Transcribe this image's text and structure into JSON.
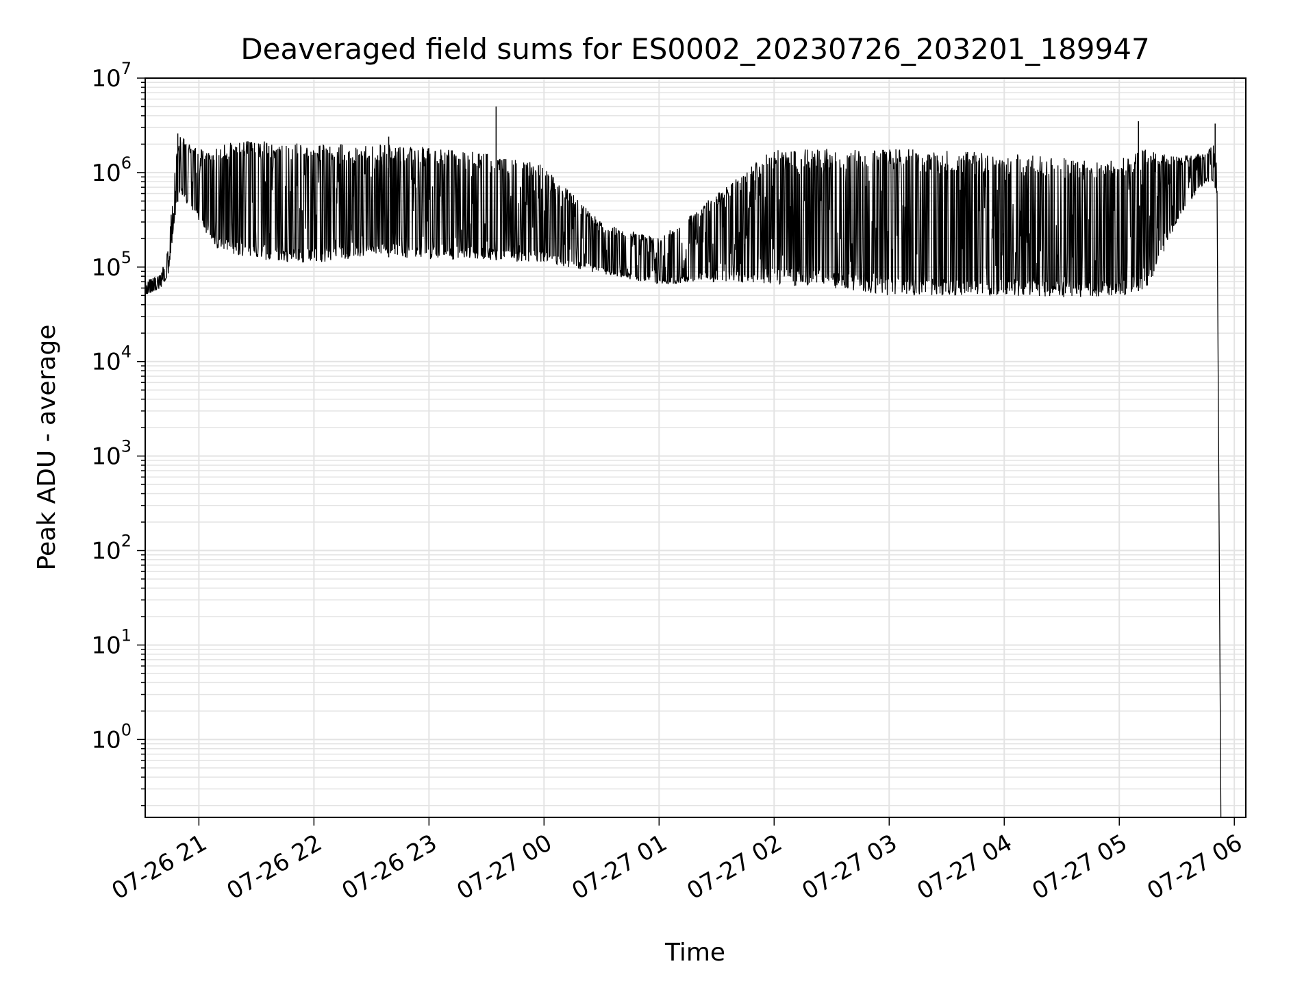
{
  "chart_data": {
    "type": "line",
    "title": "Deaveraged field sums for ES0002_20230726_203201_189947",
    "xlabel": "Time",
    "ylabel": "Peak ADU - average",
    "yscale": "log",
    "ylim": [
      0.15,
      10000000
    ],
    "xlim": [
      "2023-07-26 20:32",
      "2023-07-27 06:06"
    ],
    "grid": true,
    "colors": {
      "line": "#000000",
      "grid": "#e3e3e3",
      "axes": "#000000"
    },
    "x_ticks": [
      {
        "t": "2023-07-26 21:00",
        "label": "07-26 21"
      },
      {
        "t": "2023-07-26 22:00",
        "label": "07-26 22"
      },
      {
        "t": "2023-07-26 23:00",
        "label": "07-26 23"
      },
      {
        "t": "2023-07-27 00:00",
        "label": "07-27 00"
      },
      {
        "t": "2023-07-27 01:00",
        "label": "07-27 01"
      },
      {
        "t": "2023-07-27 02:00",
        "label": "07-27 02"
      },
      {
        "t": "2023-07-27 03:00",
        "label": "07-27 03"
      },
      {
        "t": "2023-07-27 04:00",
        "label": "07-27 04"
      },
      {
        "t": "2023-07-27 05:00",
        "label": "07-27 05"
      },
      {
        "t": "2023-07-27 06:00",
        "label": "07-27 06"
      }
    ],
    "y_ticks": [
      {
        "value": 1,
        "base": "10",
        "exp": "0"
      },
      {
        "value": 10,
        "base": "10",
        "exp": "1"
      },
      {
        "value": 100,
        "base": "10",
        "exp": "2"
      },
      {
        "value": 1000,
        "base": "10",
        "exp": "3"
      },
      {
        "value": 10000,
        "base": "10",
        "exp": "4"
      },
      {
        "value": 100000,
        "base": "10",
        "exp": "5"
      },
      {
        "value": 1000000,
        "base": "10",
        "exp": "6"
      },
      {
        "value": 10000000,
        "base": "10",
        "exp": "7"
      }
    ],
    "series": [
      {
        "envelope": [
          {
            "t": "2023-07-26 20:32",
            "low": 50000,
            "high": 70000
          },
          {
            "t": "2023-07-26 20:40",
            "low": 60000,
            "high": 85000
          },
          {
            "t": "2023-07-26 20:44",
            "low": 80000,
            "high": 150000
          },
          {
            "t": "2023-07-26 20:48",
            "low": 400000,
            "high": 1500000
          },
          {
            "t": "2023-07-26 20:50",
            "low": 600000,
            "high": 2500000
          },
          {
            "t": "2023-07-26 21:00",
            "low": 300000,
            "high": 1800000
          },
          {
            "t": "2023-07-26 21:10",
            "low": 150000,
            "high": 2000000
          },
          {
            "t": "2023-07-26 21:30",
            "low": 120000,
            "high": 2200000
          },
          {
            "t": "2023-07-26 22:00",
            "low": 110000,
            "high": 2000000
          },
          {
            "t": "2023-07-26 22:30",
            "low": 130000,
            "high": 2000000
          },
          {
            "t": "2023-07-26 23:00",
            "low": 120000,
            "high": 1900000
          },
          {
            "t": "2023-07-26 23:30",
            "low": 120000,
            "high": 1600000
          },
          {
            "t": "2023-07-27 00:00",
            "low": 110000,
            "high": 1200000
          },
          {
            "t": "2023-07-27 00:30",
            "low": 85000,
            "high": 300000
          },
          {
            "t": "2023-07-27 01:00",
            "low": 65000,
            "high": 200000
          },
          {
            "t": "2023-07-27 01:30",
            "low": 70000,
            "high": 600000
          },
          {
            "t": "2023-07-27 02:00",
            "low": 65000,
            "high": 1800000
          },
          {
            "t": "2023-07-27 02:30",
            "low": 60000,
            "high": 1800000
          },
          {
            "t": "2023-07-27 03:00",
            "low": 50000,
            "high": 1800000
          },
          {
            "t": "2023-07-27 03:30",
            "low": 50000,
            "high": 1700000
          },
          {
            "t": "2023-07-27 04:00",
            "low": 50000,
            "high": 1600000
          },
          {
            "t": "2023-07-27 04:30",
            "low": 48000,
            "high": 1500000
          },
          {
            "t": "2023-07-27 05:00",
            "low": 48000,
            "high": 1400000
          },
          {
            "t": "2023-07-27 05:15",
            "low": 60000,
            "high": 1800000
          },
          {
            "t": "2023-07-27 05:30",
            "low": 300000,
            "high": 1500000
          },
          {
            "t": "2023-07-27 05:45",
            "low": 800000,
            "high": 1600000
          },
          {
            "t": "2023-07-27 05:49",
            "low": 800000,
            "high": 2000000
          },
          {
            "t": "2023-07-27 05:51",
            "low": 600000,
            "high": 1200000
          },
          {
            "t": "2023-07-27 05:53",
            "low": 0.15,
            "high": 0.15
          }
        ],
        "spikes": [
          {
            "t": "2023-07-26 20:49",
            "value": 2600000
          },
          {
            "t": "2023-07-26 22:39",
            "value": 2400000
          },
          {
            "t": "2023-07-26 23:35",
            "value": 5000000
          },
          {
            "t": "2023-07-27 05:10",
            "value": 3500000
          },
          {
            "t": "2023-07-27 05:50",
            "value": 3300000
          }
        ]
      }
    ]
  }
}
